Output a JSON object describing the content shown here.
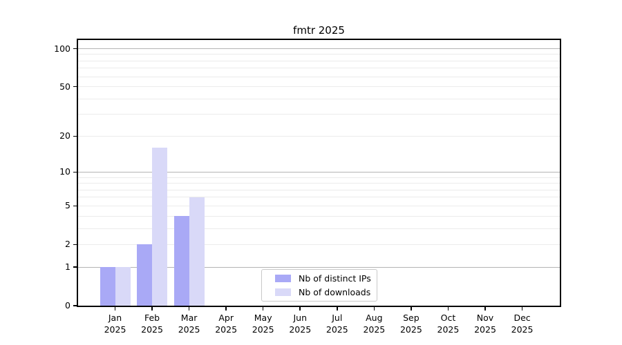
{
  "title": "fmtr 2025",
  "chart_data": {
    "type": "bar",
    "title": "fmtr 2025",
    "categories": [
      "Jan 2025",
      "Feb 2025",
      "Mar 2025",
      "Apr 2025",
      "May 2025",
      "Jun 2025",
      "Jul 2025",
      "Aug 2025",
      "Sep 2025",
      "Oct 2025",
      "Nov 2025",
      "Dec 2025"
    ],
    "series": [
      {
        "name": "Nb of distinct IPs",
        "color": "#a9a9f6",
        "values": [
          1,
          2,
          4,
          0,
          0,
          0,
          0,
          0,
          0,
          0,
          0,
          0
        ]
      },
      {
        "name": "Nb of downloads",
        "color": "#d9d9f8",
        "values": [
          1,
          16,
          6,
          0,
          0,
          0,
          0,
          0,
          0,
          0,
          0,
          0
        ]
      }
    ],
    "xlabel": "",
    "ylabel": "",
    "y_axis": {
      "scale": "log1p",
      "tick_labels": [
        100,
        50,
        20,
        10,
        5,
        2,
        1,
        0
      ],
      "max": 117,
      "major_gridlines": [
        1,
        10,
        100
      ],
      "minor_gridlines": [
        2,
        3,
        4,
        5,
        6,
        7,
        8,
        9,
        20,
        30,
        40,
        50,
        60,
        70,
        80,
        90
      ]
    },
    "grid": true,
    "legend_position": "bottom-center"
  },
  "colors": {
    "bar_distinct_ips": "#a9a9f6",
    "bar_downloads": "#d9d9f8",
    "grid_major": "#b4b4b4",
    "grid_minor": "#ebebeb",
    "spine": "#000000",
    "text": "#000000",
    "legend_border": "#c9c9c9",
    "background": "#ffffff"
  }
}
